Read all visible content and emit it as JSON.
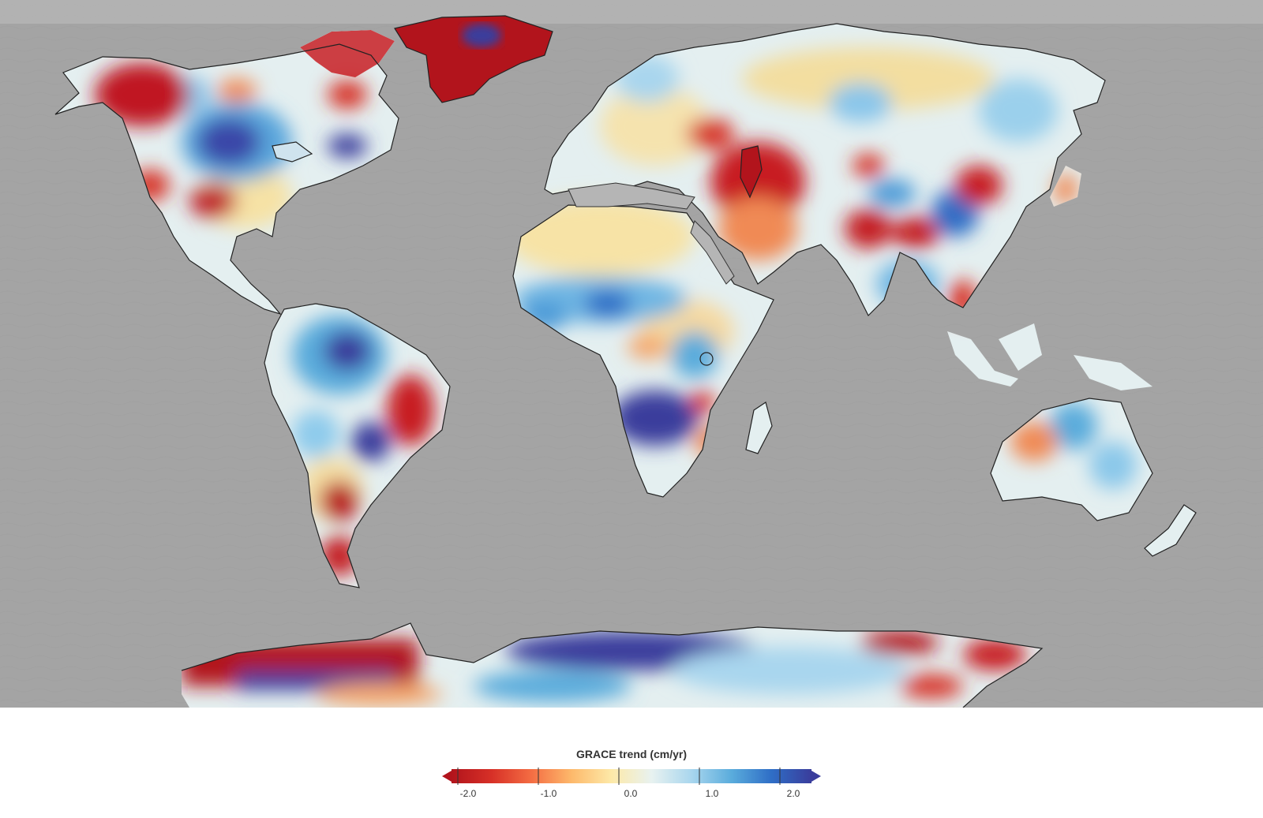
{
  "map": {
    "variable": "GRACE trend",
    "units": "cm/yr",
    "basemap": "shaded-relief-ocean-floor",
    "land_colormap": "red-to-blue diverging",
    "highlighted_regions": {
      "strong_loss": [
        "Alaska",
        "Greenland",
        "Canadian Arctic Archipelago",
        "Patagonia",
        "Antarctic Peninsula / West Antarctica",
        "Caspian region",
        "Northern India",
        "North China Plain",
        "California",
        "Southern Great Plains"
      ],
      "strong_gain": [
        "Central Canada",
        "Amazon basin",
        "Okavango / Southern Africa",
        "East Antarctica",
        "Lake Victoria region",
        "Northern Australia"
      ]
    }
  },
  "legend": {
    "title": "GRACE trend (cm/yr)",
    "ticks": [
      "-2.0",
      "-1.0",
      "0.0",
      "1.0",
      "2.0"
    ],
    "range": [
      -2.0,
      2.0
    ],
    "extend": "both",
    "colors": [
      "#b2141c",
      "#d73027",
      "#f46d43",
      "#fdb96b",
      "#fde9a8",
      "#e8f2f0",
      "#a9d6ee",
      "#5aacdc",
      "#2f6ec6",
      "#3a3d9c"
    ]
  }
}
